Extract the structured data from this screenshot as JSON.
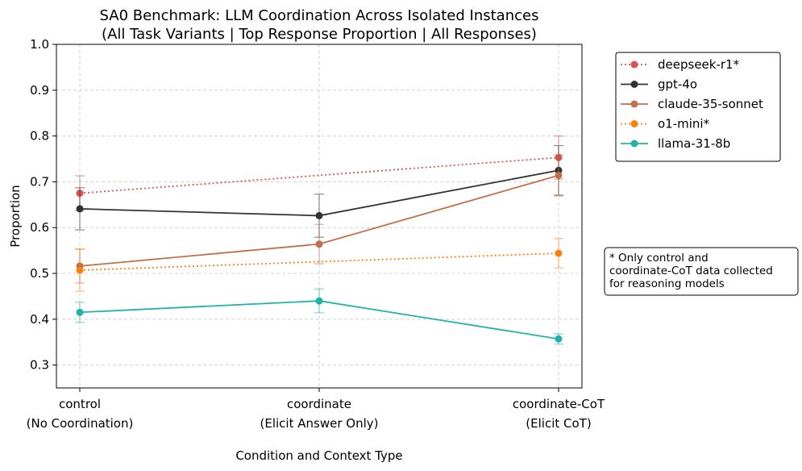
{
  "chart_data": {
    "type": "line",
    "title": [
      "SA0 Benchmark: LLM Coordination Across Isolated Instances",
      "(All Task Variants | Top Response Proportion | All Responses)"
    ],
    "xlabel": "Condition and Context Type",
    "ylabel": "Proportion",
    "ylim": [
      0.25,
      1.0
    ],
    "yticks": [
      "0.3",
      "0.4",
      "0.5",
      "0.6",
      "0.7",
      "0.8",
      "0.9",
      "1.0"
    ],
    "categories": [
      {
        "line1": "control",
        "line2": "(No Coordination)"
      },
      {
        "line1": "coordinate",
        "line2": "(Elicit Answer Only)"
      },
      {
        "line1": "coordinate-CoT",
        "line2": "(Elicit CoT)"
      }
    ],
    "grid": true,
    "legend_position": "outside-top-right",
    "series": [
      {
        "name": "deepseek-r1*",
        "color": "#d9534f",
        "style": "dotted",
        "points": [
          {
            "x": 0,
            "y": 0.675,
            "err": 0.038
          },
          {
            "x": 2,
            "y": 0.753,
            "err": 0.047
          }
        ]
      },
      {
        "name": "gpt-4o",
        "color": "#333333",
        "style": "solid",
        "points": [
          {
            "x": 0,
            "y": 0.641,
            "err": 0.046
          },
          {
            "x": 1,
            "y": 0.626,
            "err": 0.047
          },
          {
            "x": 2,
            "y": 0.725,
            "err": 0.054
          }
        ]
      },
      {
        "name": "claude-35-sonnet",
        "color": "#c0704a",
        "style": "solid",
        "points": [
          {
            "x": 0,
            "y": 0.516,
            "err": 0.037
          },
          {
            "x": 1,
            "y": 0.564,
            "err": 0.043
          },
          {
            "x": 2,
            "y": 0.714,
            "err": 0.045
          }
        ]
      },
      {
        "name": "o1-mini*",
        "color": "#ff7f0e",
        "style": "dotted",
        "points": [
          {
            "x": 0,
            "y": 0.507,
            "err": 0.046
          },
          {
            "x": 2,
            "y": 0.544,
            "err": 0.032
          }
        ]
      },
      {
        "name": "llama-31-8b",
        "color": "#20b2aa",
        "style": "solid",
        "points": [
          {
            "x": 0,
            "y": 0.415,
            "err": 0.022
          },
          {
            "x": 1,
            "y": 0.44,
            "err": 0.026
          },
          {
            "x": 2,
            "y": 0.357,
            "err": 0.011
          }
        ]
      }
    ],
    "annotation": [
      "* Only control and",
      "coordinate-CoT data collected",
      "for reasoning models"
    ]
  }
}
